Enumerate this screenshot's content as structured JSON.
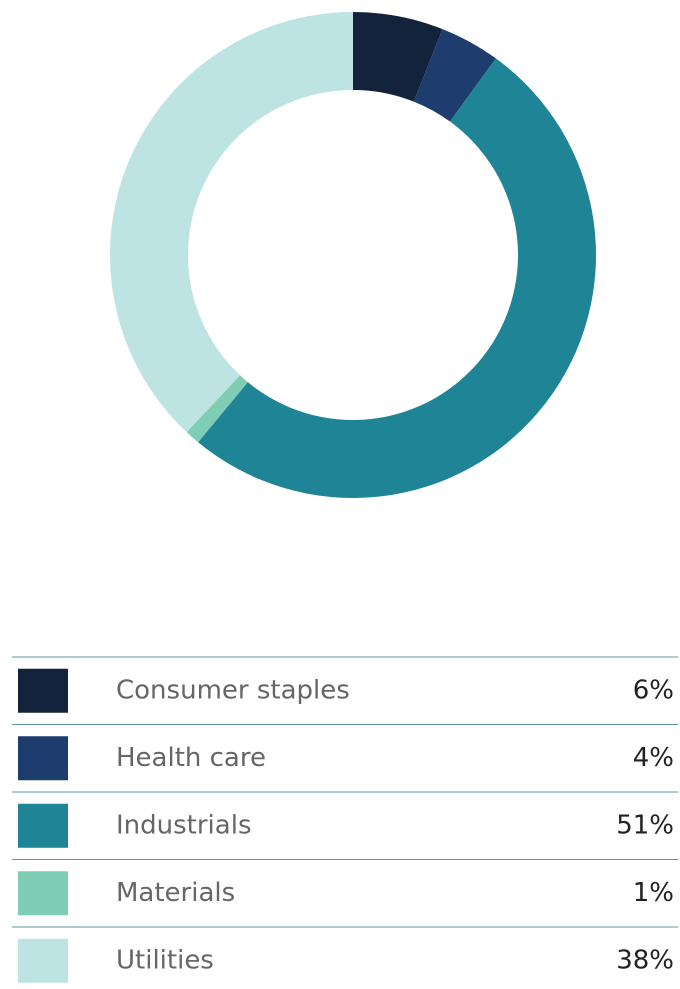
{
  "chart_data": {
    "type": "pie",
    "donut": true,
    "categories": [
      "Consumer staples",
      "Health care",
      "Industrials",
      "Materials",
      "Utilities"
    ],
    "values": [
      6,
      4,
      51,
      1,
      38
    ],
    "value_labels": [
      "6%",
      "4%",
      "51%",
      "1%",
      "38%"
    ],
    "colors": [
      "#14233c",
      "#1d3d6e",
      "#1e8496",
      "#7fcdb4",
      "#bde3e3"
    ]
  }
}
